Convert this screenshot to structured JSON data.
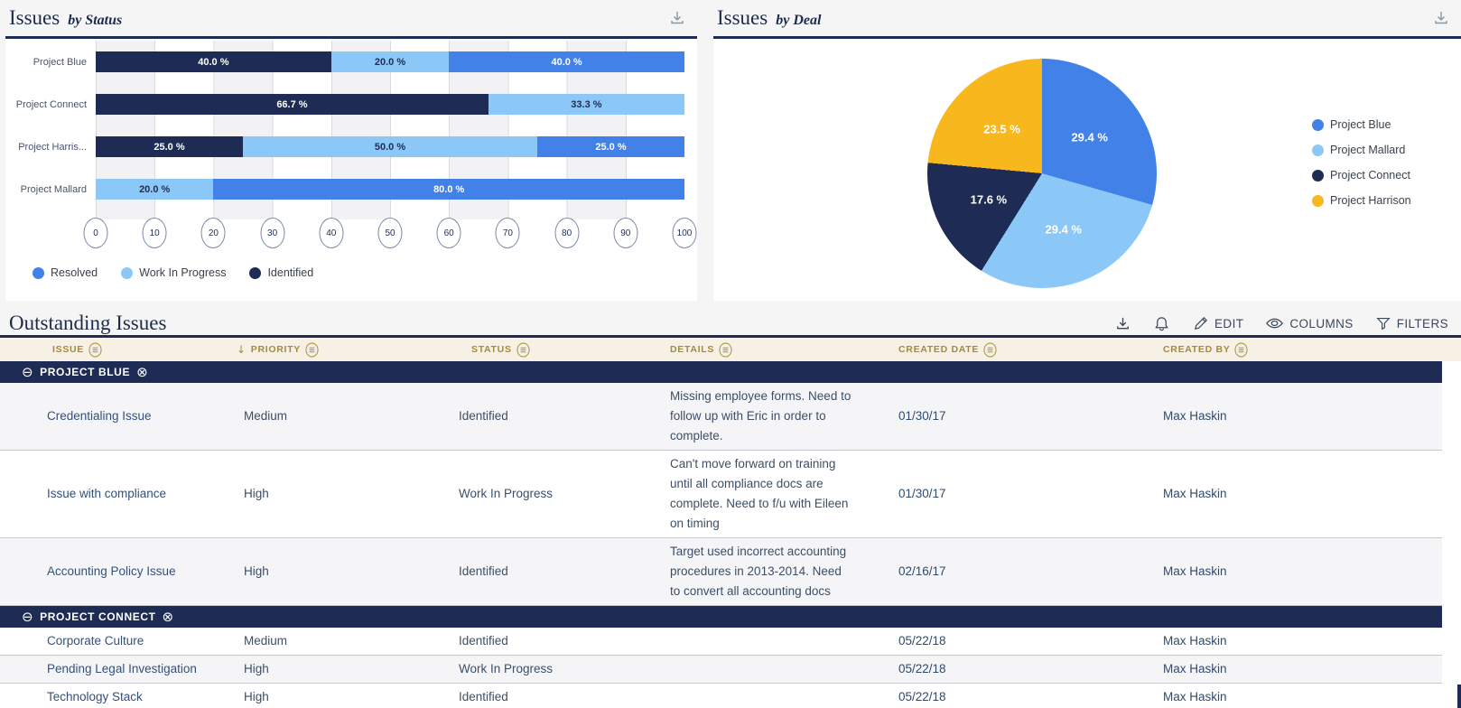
{
  "colors": {
    "navy": "#1e2c55",
    "blue": "#4181e8",
    "light_blue": "#8cc8f7",
    "yellow": "#f9b71e",
    "rule": "#1e2c55",
    "header_beige": "#f6f1e4",
    "header_gold": "#a58a3d",
    "row_alt": "#f5f5f7"
  },
  "status_card": {
    "title": "Issues",
    "subtitle": "by Status"
  },
  "deal_card": {
    "title": "Issues",
    "subtitle": "by Deal"
  },
  "chart_data": [
    {
      "type": "bar",
      "title": "Issues by Status",
      "orientation": "horizontal",
      "stacked": true,
      "categories": [
        "Project Blue",
        "Project Connect",
        "Project Harris...",
        "Project Mallard"
      ],
      "series": [
        {
          "name": "Identified",
          "color": "#1e2c55",
          "values": [
            40.0,
            66.7,
            25.0,
            0
          ]
        },
        {
          "name": "Work In Progress",
          "color": "#8cc8f7",
          "values": [
            20.0,
            33.3,
            50.0,
            20.0
          ]
        },
        {
          "name": "Resolved",
          "color": "#4181e8",
          "values": [
            40.0,
            0,
            25.0,
            80.0
          ]
        }
      ],
      "value_suffix": " %",
      "xlim": [
        0,
        100
      ],
      "xticks": [
        0,
        10,
        20,
        30,
        40,
        50,
        60,
        70,
        80,
        90,
        100
      ],
      "grid": true,
      "legend_position": "bottom",
      "legend": [
        {
          "label": "Resolved",
          "color": "#4181e8"
        },
        {
          "label": "Work In Progress",
          "color": "#8cc8f7"
        },
        {
          "label": "Identified",
          "color": "#1e2c55"
        }
      ]
    },
    {
      "type": "pie",
      "title": "Issues by Deal",
      "start_angle_deg": 0,
      "direction": "clockwise",
      "value_suffix": " %",
      "legend_position": "right",
      "slices": [
        {
          "label": "Project Blue",
          "value": 29.4,
          "color": "#4181e8"
        },
        {
          "label": "Project Mallard",
          "value": 29.4,
          "color": "#8cc8f7"
        },
        {
          "label": "Project Connect",
          "value": 17.6,
          "color": "#1e2c55"
        },
        {
          "label": "Project Harrison",
          "value": 23.5,
          "color": "#f9b71e"
        }
      ]
    }
  ],
  "issues_table": {
    "title": "Outstanding Issues",
    "toolbar": {
      "edit_label": "EDIT",
      "columns_label": "COLUMNS",
      "filters_label": "FILTERS"
    },
    "columns": [
      {
        "label": "ISSUE"
      },
      {
        "label": "PRIORITY",
        "sorted": "desc"
      },
      {
        "label": "STATUS"
      },
      {
        "label": "DETAILS"
      },
      {
        "label": "CREATED DATE"
      },
      {
        "label": "CREATED BY"
      }
    ],
    "groups": [
      {
        "label": "PROJECT BLUE",
        "rows": [
          {
            "issue": "Credentialing Issue",
            "priority": "Medium",
            "status": "Identified",
            "details": "Missing employee forms. Need to follow up with Eric in order to complete.",
            "created_date": "01/30/17",
            "created_by": "Max Haskin"
          },
          {
            "issue": "Issue with compliance",
            "priority": "High",
            "status": "Work In Progress",
            "details": "Can't move forward on training until all compliance docs are complete. Need to f/u with Eileen on timing",
            "created_date": "01/30/17",
            "created_by": "Max Haskin"
          },
          {
            "issue": "Accounting Policy Issue",
            "priority": "High",
            "status": "Identified",
            "details": "Target used incorrect accounting procedures in 2013-2014. Need to convert all accounting docs",
            "created_date": "02/16/17",
            "created_by": "Max Haskin"
          }
        ]
      },
      {
        "label": "PROJECT CONNECT",
        "rows": [
          {
            "issue": "Corporate Culture",
            "priority": "Medium",
            "status": "Identified",
            "details": "",
            "created_date": "05/22/18",
            "created_by": "Max Haskin"
          },
          {
            "issue": "Pending Legal Investigation",
            "priority": "High",
            "status": "Work In Progress",
            "details": "",
            "created_date": "05/22/18",
            "created_by": "Max Haskin"
          },
          {
            "issue": "Technology Stack",
            "priority": "High",
            "status": "Identified",
            "details": "",
            "created_date": "05/22/18",
            "created_by": "Max Haskin"
          }
        ]
      }
    ]
  }
}
